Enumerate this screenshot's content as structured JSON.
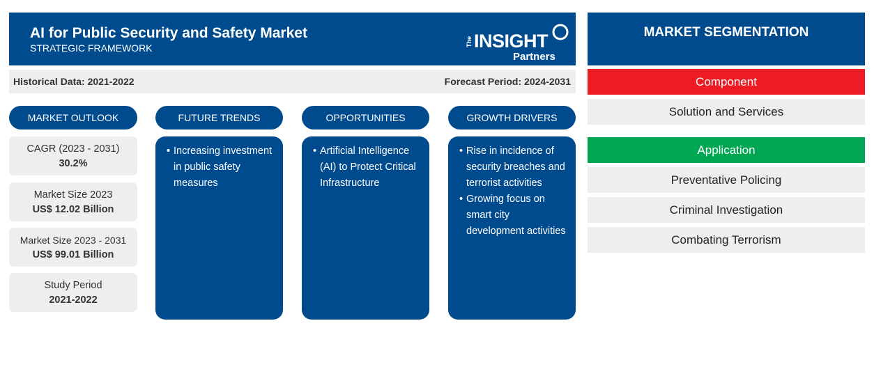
{
  "header": {
    "title": "AI for Public Security and Safety Market",
    "subtitle": "STRATEGIC FRAMEWORK",
    "logo": {
      "the": "The",
      "insight": "INSIGHT",
      "partners": "Partners"
    }
  },
  "periods": {
    "historical": "Historical Data: 2021-2022",
    "forecast": "Forecast Period: 2024-2031"
  },
  "columns": {
    "outlook": {
      "label": "MARKET OUTLOOK"
    },
    "trends": {
      "label": "FUTURE TRENDS",
      "items": [
        "Increasing investment in public safety measures"
      ]
    },
    "opportunities": {
      "label": "OPPORTUNITIES",
      "items": [
        "Artificial Intelligence (AI) to Protect Critical Infrastructure"
      ]
    },
    "drivers": {
      "label": "GROWTH DRIVERS",
      "items": [
        "Rise in incidence of security breaches and terrorist activities",
        "Growing focus on smart city development activities"
      ]
    }
  },
  "outlook_stats": [
    {
      "label": "CAGR (2023 - 2031)",
      "value": "30.2%"
    },
    {
      "label": "Market Size 2023",
      "value": "US$ 12.02 Billion"
    },
    {
      "label": "Market Size 2023 - 2031",
      "value": "US$ 99.01 Billion"
    },
    {
      "label": "Study Period",
      "value": "2021-2022"
    }
  ],
  "segmentation": {
    "title": "MARKET SEGMENTATION",
    "component": {
      "label": "Component",
      "color": "#ed1c24",
      "items": [
        "Solution and Services"
      ]
    },
    "application": {
      "label": "Application",
      "color": "#00a651",
      "items": [
        "Preventative Policing",
        "Criminal Investigation",
        "Combating Terrorism"
      ]
    }
  },
  "colors": {
    "primary": "#004b8d",
    "panel": "#eeeeee"
  }
}
